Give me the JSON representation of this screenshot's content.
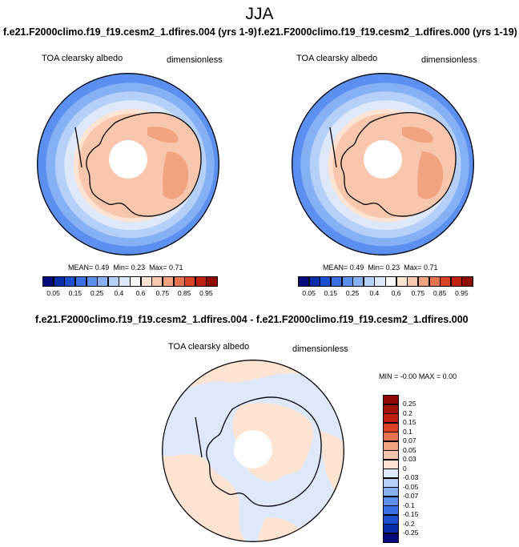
{
  "title": "JJA",
  "panels": [
    {
      "case_title": "f.e21.F2000climo.f19_f19.cesm2_1.dfires.004 (yrs 1-9)",
      "var_name": "TOA clearsky albedo",
      "units": "dimensionless",
      "stats": {
        "mean_label": "MEAN=",
        "mean": "0.49",
        "min_label": "Min=",
        "min": "0.23",
        "max_label": "Max=",
        "max": "0.71"
      }
    },
    {
      "case_title": "f.e21.F2000climo.f19_f19.cesm2_1.dfires.000 (yrs 1-19)",
      "var_name": "TOA clearsky albedo",
      "units": "dimensionless",
      "stats": {
        "mean_label": "MEAN=",
        "mean": "0.49",
        "min_label": "Min=",
        "min": "0.23",
        "max_label": "Max=",
        "max": "0.71"
      }
    }
  ],
  "diff_panel": {
    "case_title": "f.e21.F2000climo.f19_f19.cesm2_1.dfires.004 - f.e21.F2000climo.f19_f19.cesm2_1.dfires.000",
    "var_name": "TOA clearsky albedo",
    "units": "dimensionless",
    "stats": {
      "min_label": "MIN =",
      "min": "-0.00",
      "max_label": "MAX =",
      "max": "0.00"
    }
  },
  "chart_data": [
    {
      "type": "polar-contour-map",
      "projection": "south polar stereographic",
      "variable": "TOA clearsky albedo",
      "units": "dimensionless",
      "levels": [
        0.05,
        0.1,
        0.15,
        0.2,
        0.25,
        0.3,
        0.4,
        0.5,
        0.6,
        0.65,
        0.75,
        0.8,
        0.85,
        0.9,
        0.95
      ],
      "tick_labels": [
        "0.05",
        "0.15",
        "0.25",
        "0.4",
        "0.6",
        "0.75",
        "0.85",
        "0.95"
      ],
      "colors": [
        "#000a7a",
        "#0a2ea8",
        "#1a4fd0",
        "#3a70e6",
        "#5b8ff0",
        "#86b0f4",
        "#b4cff8",
        "#dde9fb",
        "#ffffff",
        "#fde3d2",
        "#f7c6ad",
        "#f1a27f",
        "#e8744f",
        "#d84325",
        "#c0200f",
        "#8f0a05"
      ],
      "rings": [
        {
          "value": 0.25,
          "color": "#5b8ff0"
        },
        {
          "value": 0.3,
          "color": "#86b0f4"
        },
        {
          "value": 0.4,
          "color": "#b4cff8"
        },
        {
          "value": 0.5,
          "color": "#dde9fb"
        },
        {
          "value": 0.6,
          "color": "#fde3d2"
        },
        {
          "value": 0.65,
          "color": "#f7c6ad"
        }
      ],
      "interior": {
        "value": 0.7,
        "color": "#f1a27f"
      },
      "pole_hole": "missing data"
    },
    {
      "type": "polar-contour-map",
      "projection": "south polar stereographic",
      "variable": "TOA clearsky albedo (difference)",
      "units": "dimensionless",
      "levels": [
        -0.25,
        -0.2,
        -0.15,
        -0.1,
        -0.07,
        -0.05,
        -0.03,
        0,
        0.03,
        0.05,
        0.07,
        0.1,
        0.15,
        0.2,
        0.25
      ],
      "tick_labels": [
        "0.25",
        "0.2",
        "0.15",
        "0.1",
        "0.07",
        "0.05",
        "0.03",
        "0",
        "-0.03",
        "-0.05",
        "-0.07",
        "-0.1",
        "-0.15",
        "-0.2",
        "-0.25"
      ],
      "colors": [
        "#000a7a",
        "#0a2ea8",
        "#1a4fd0",
        "#3a70e6",
        "#5b8ff0",
        "#86b0f4",
        "#b4cff8",
        "#dde9fb",
        "#fde3d2",
        "#f7c6ad",
        "#f1a27f",
        "#e8744f",
        "#d84325",
        "#c0200f",
        "#a01408",
        "#8f0a05"
      ],
      "field_colors": {
        "slightly_negative": "#dde9fb",
        "slightly_positive": "#fde3d2"
      }
    }
  ]
}
